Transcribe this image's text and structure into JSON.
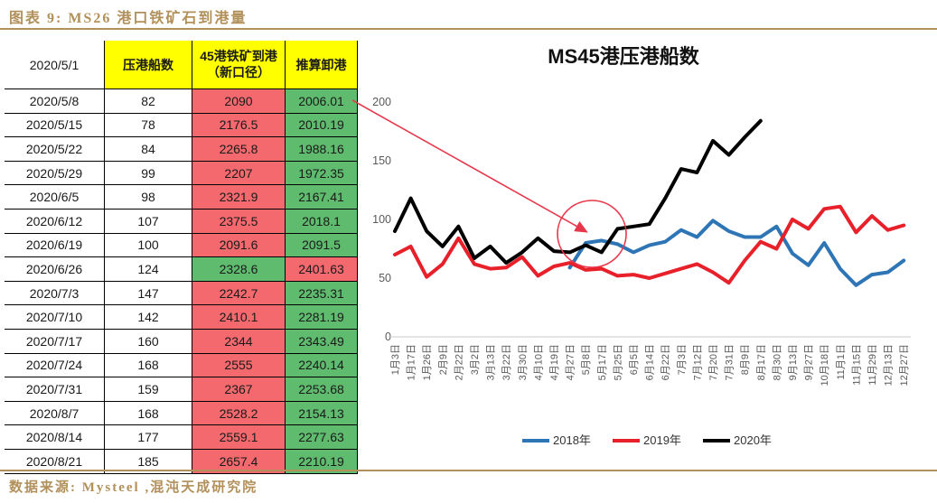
{
  "page": {
    "figure_title": "图表 9: MS26 港口铁矿石到港量",
    "source": "数据来源: Mysteel ,混沌天成研究院",
    "accent_color": "#b2905a"
  },
  "table": {
    "header": {
      "date": "2020/5/1",
      "ships": "压港船数",
      "arrival_line1": "45港铁矿到港",
      "arrival_line2": "（新口径）",
      "unload": "推算卸港"
    },
    "cell_colors": {
      "red": "#f4696e",
      "green": "#5fbb6e",
      "header_yellow": "#ffff00",
      "header_red_text": "#ff0000"
    },
    "rows": [
      {
        "date": "2020/5/8",
        "ships": "82",
        "arrival": "2090",
        "unload": "2006.01",
        "arrival_bg": "red",
        "unload_bg": "green"
      },
      {
        "date": "2020/5/15",
        "ships": "78",
        "arrival": "2176.5",
        "unload": "2010.19",
        "arrival_bg": "red",
        "unload_bg": "green"
      },
      {
        "date": "2020/5/22",
        "ships": "84",
        "arrival": "2265.8",
        "unload": "1988.16",
        "arrival_bg": "red",
        "unload_bg": "green"
      },
      {
        "date": "2020/5/29",
        "ships": "99",
        "arrival": "2207",
        "unload": "1972.35",
        "arrival_bg": "red",
        "unload_bg": "green"
      },
      {
        "date": "2020/6/5",
        "ships": "98",
        "arrival": "2321.9",
        "unload": "2167.41",
        "arrival_bg": "red",
        "unload_bg": "green"
      },
      {
        "date": "2020/6/12",
        "ships": "107",
        "arrival": "2375.5",
        "unload": "2018.1",
        "arrival_bg": "red",
        "unload_bg": "green"
      },
      {
        "date": "2020/6/19",
        "ships": "100",
        "arrival": "2091.6",
        "unload": "2091.5",
        "arrival_bg": "red",
        "unload_bg": "green"
      },
      {
        "date": "2020/6/26",
        "ships": "124",
        "arrival": "2328.6",
        "unload": "2401.63",
        "arrival_bg": "green",
        "unload_bg": "red"
      },
      {
        "date": "2020/7/3",
        "ships": "147",
        "arrival": "2242.7",
        "unload": "2235.31",
        "arrival_bg": "red",
        "unload_bg": "green"
      },
      {
        "date": "2020/7/10",
        "ships": "142",
        "arrival": "2410.1",
        "unload": "2281.19",
        "arrival_bg": "red",
        "unload_bg": "green"
      },
      {
        "date": "2020/7/17",
        "ships": "160",
        "arrival": "2344",
        "unload": "2343.49",
        "arrival_bg": "red",
        "unload_bg": "green"
      },
      {
        "date": "2020/7/24",
        "ships": "168",
        "arrival": "2555",
        "unload": "2240.14",
        "arrival_bg": "red",
        "unload_bg": "green"
      },
      {
        "date": "2020/7/31",
        "ships": "159",
        "arrival": "2367",
        "unload": "2253.68",
        "arrival_bg": "red",
        "unload_bg": "green"
      },
      {
        "date": "2020/8/7",
        "ships": "168",
        "arrival": "2528.2",
        "unload": "2154.13",
        "arrival_bg": "red",
        "unload_bg": "green"
      },
      {
        "date": "2020/8/14",
        "ships": "177",
        "arrival": "2559.1",
        "unload": "2277.63",
        "arrival_bg": "red",
        "unload_bg": "green"
      },
      {
        "date": "2020/8/21",
        "ships": "185",
        "arrival": "2657.4",
        "unload": "2210.19",
        "arrival_bg": "red",
        "unload_bg": "green"
      }
    ]
  },
  "chart_data": {
    "type": "line",
    "title": "MS45港压港船数",
    "ylim": [
      0,
      200
    ],
    "yticks": [
      0,
      50,
      100,
      150,
      200
    ],
    "grid": false,
    "legend_position": "bottom",
    "x_labels": [
      "1月3日",
      "1月17日",
      "1月26日",
      "2月9日",
      "2月22日",
      "3月2日",
      "3月13日",
      "3月22日",
      "3月30日",
      "4月10日",
      "4月19日",
      "4月27日",
      "5月8日",
      "5月17日",
      "5月25日",
      "6月5日",
      "6月14日",
      "6月22日",
      "7月3日",
      "7月12日",
      "7月20日",
      "7月31日",
      "8月9日",
      "8月17日",
      "8月30日",
      "9月13日",
      "9月27日",
      "10月18日",
      "11月1日",
      "11月15日",
      "11月29日",
      "12月13日",
      "12月27日"
    ],
    "series": [
      {
        "name": "2018年",
        "color": "#2e75b6",
        "start_index": 11,
        "values": [
          59,
          80,
          82,
          79,
          72,
          78,
          81,
          91,
          85,
          99,
          90,
          85,
          85,
          94,
          71,
          61,
          80,
          58,
          44,
          53,
          55,
          65
        ]
      },
      {
        "name": "2019年",
        "color": "#e8202a",
        "start_index": 0,
        "values": [
          70,
          77,
          51,
          62,
          84,
          62,
          58,
          59,
          68,
          52,
          60,
          63,
          57,
          58,
          52,
          53,
          50,
          54,
          58,
          62,
          55,
          46,
          65,
          81,
          75,
          100,
          92,
          109,
          111,
          89,
          103,
          91,
          95
        ]
      },
      {
        "name": "2020年",
        "color": "#000000",
        "start_index": 0,
        "values": [
          90,
          118,
          90,
          77,
          94,
          67,
          77,
          63,
          72,
          84,
          73,
          72,
          78,
          72,
          92,
          94,
          96,
          118,
          143,
          140,
          167,
          155,
          170,
          184
        ]
      }
    ],
    "annotation": {
      "color": "#e8364a",
      "circled_labels": [
        "5月8日",
        "5月17日",
        "5月25日"
      ]
    }
  }
}
